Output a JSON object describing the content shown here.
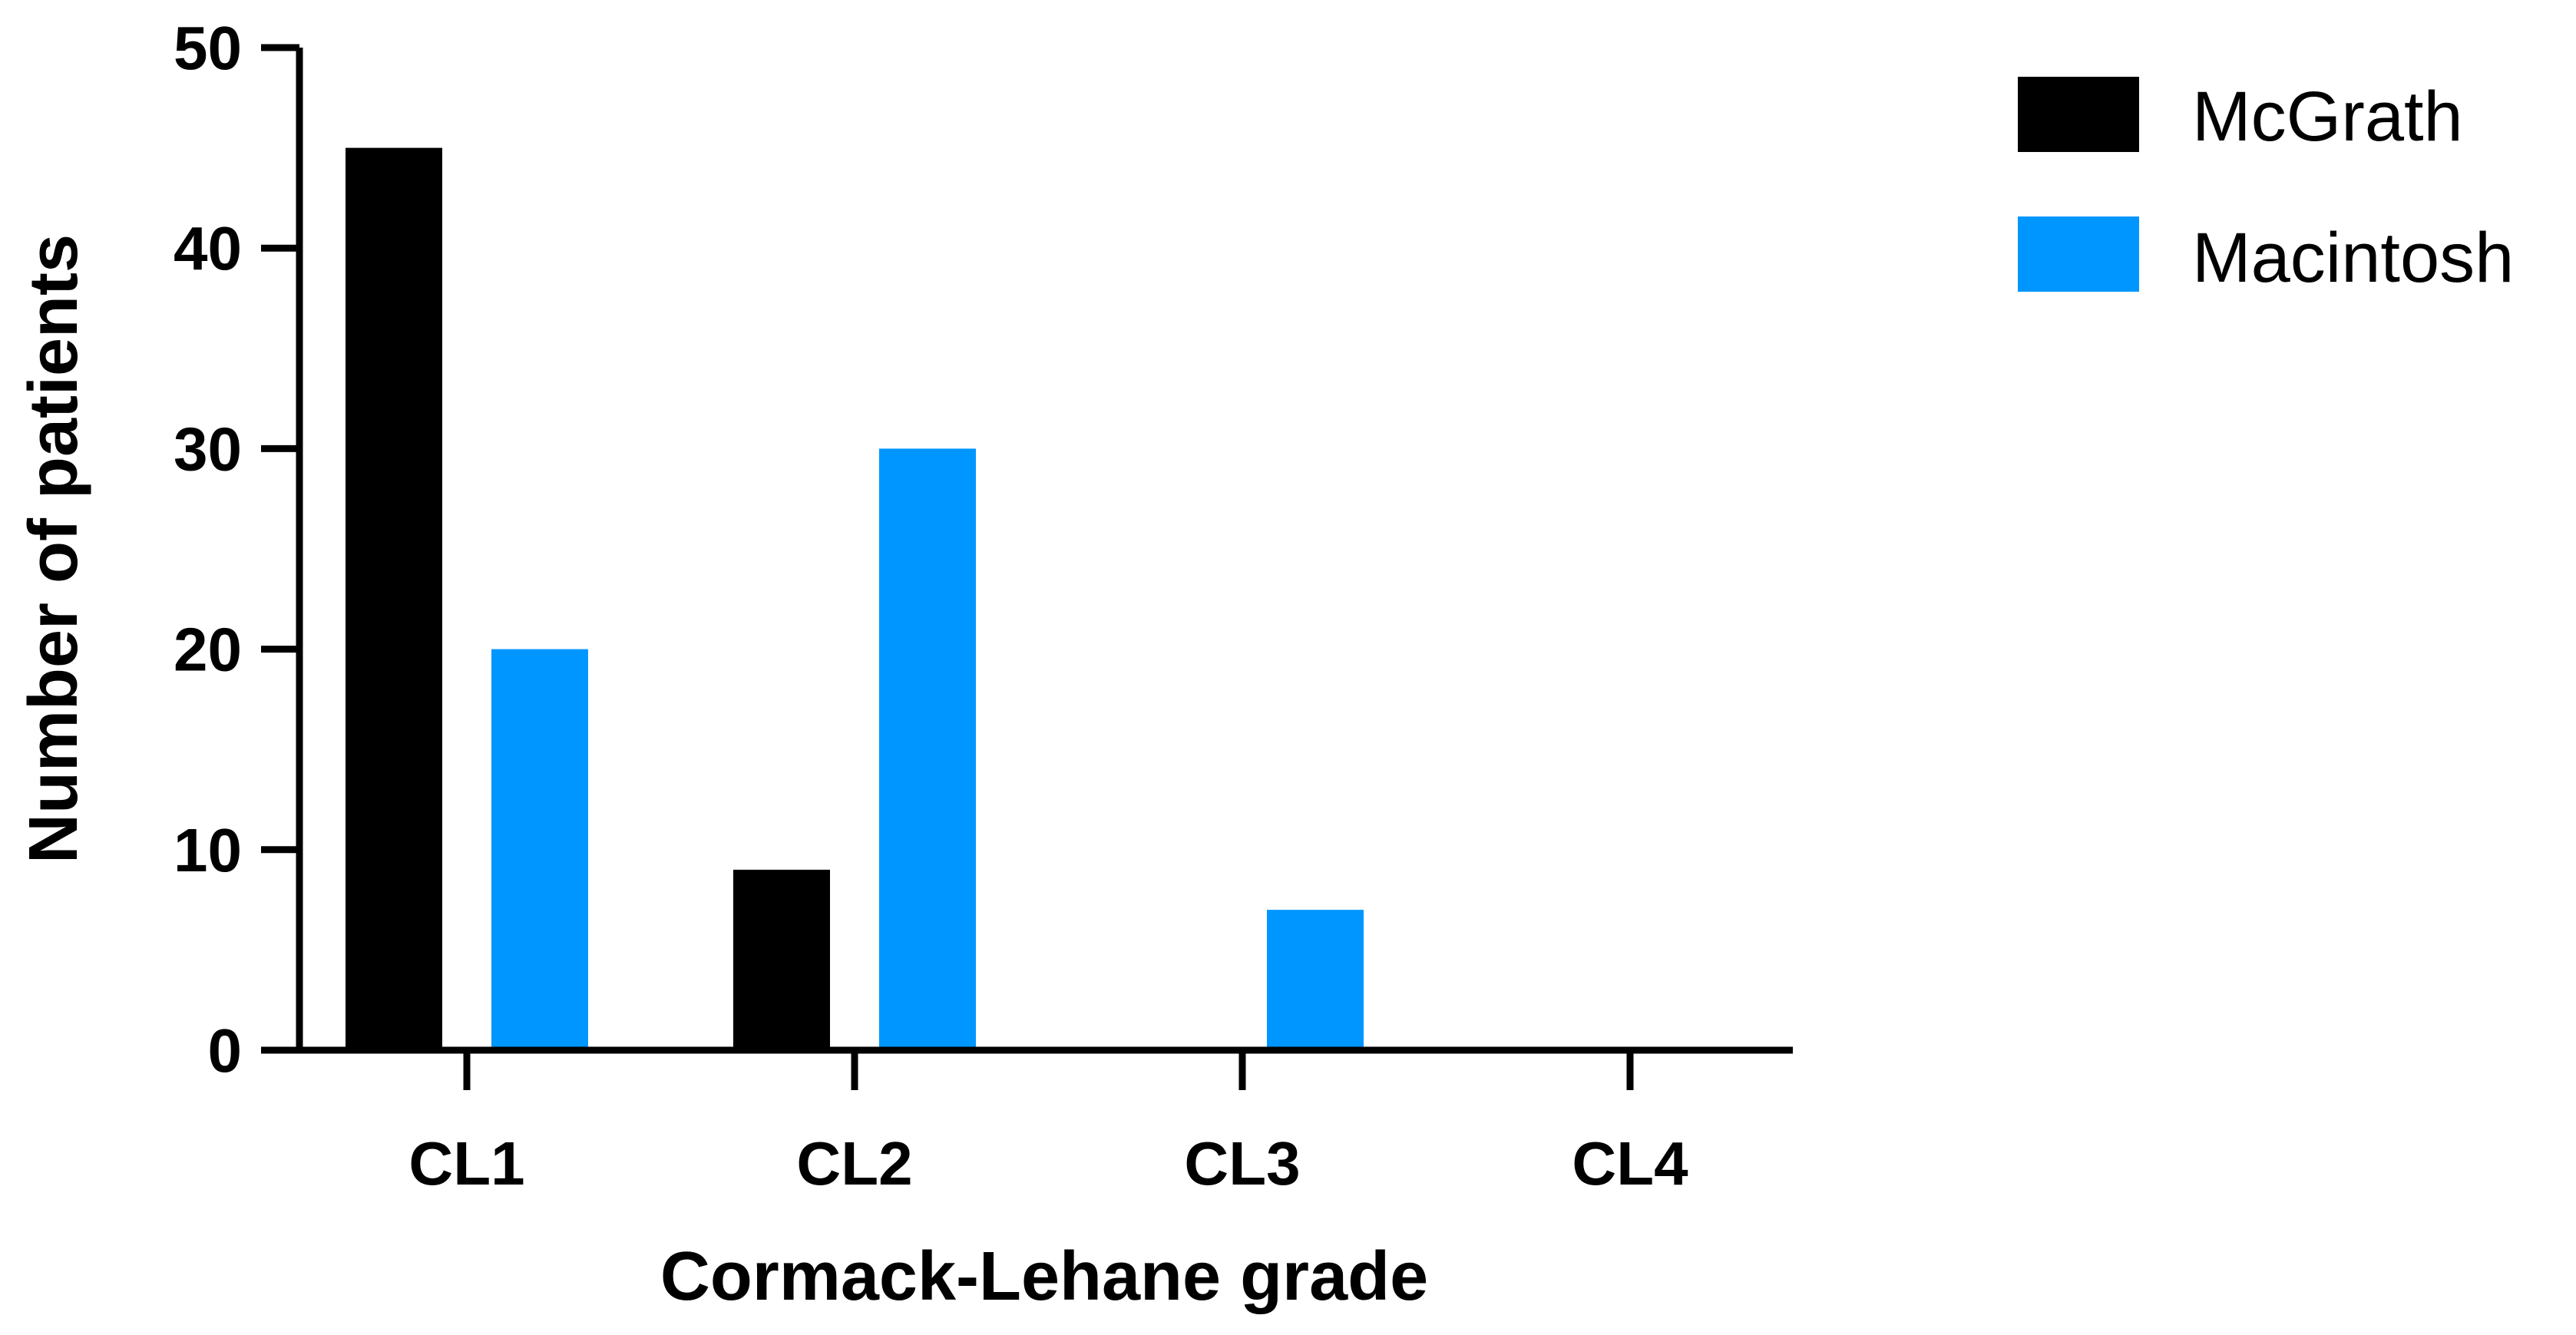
{
  "chart_data": {
    "type": "bar",
    "categories": [
      "CL1",
      "CL2",
      "CL3",
      "CL4"
    ],
    "series": [
      {
        "name": "McGrath",
        "color": "#000000",
        "values": [
          45,
          9,
          0,
          0
        ]
      },
      {
        "name": "Macintosh",
        "color": "#0096FF",
        "values": [
          20,
          30,
          7,
          0
        ]
      }
    ],
    "xlabel": "Cormack-Lehane grade",
    "ylabel": "Number of patients",
    "ylim": [
      0,
      50
    ],
    "yticks": [
      "0",
      "10",
      "20",
      "30",
      "40",
      "50"
    ],
    "grid": false,
    "legend_position": "top-right"
  }
}
